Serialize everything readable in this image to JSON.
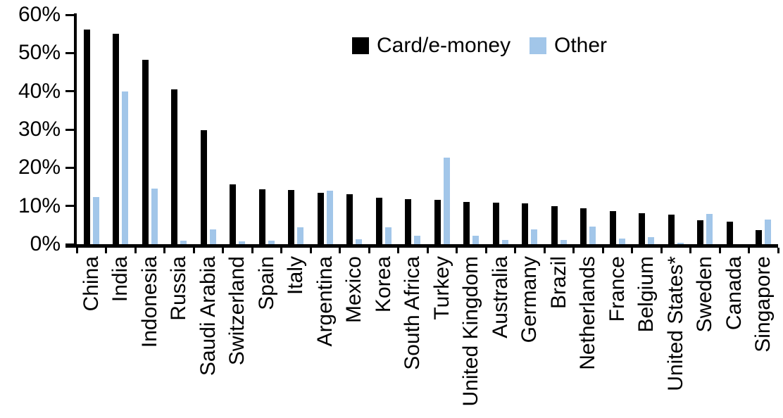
{
  "chart_data": {
    "type": "bar",
    "title": "",
    "xlabel": "",
    "ylabel": "",
    "categories": [
      "China",
      "India",
      "Indonesia",
      "Russia",
      "Saudi Arabia",
      "Switzerland",
      "Spain",
      "Italy",
      "Argentina",
      "Mexico",
      "Korea",
      "South Africa",
      "Turkey",
      "United Kingdom",
      "Australia",
      "Germany",
      "Brazil",
      "Netherlands",
      "France",
      "Belgium",
      "United States*",
      "Sweden",
      "Canada",
      "Singapore"
    ],
    "series": [
      {
        "name": "Card/e-money",
        "color": "#000000",
        "values": [
          56.2,
          55.0,
          48.3,
          40.4,
          29.8,
          15.7,
          14.3,
          14.2,
          13.4,
          13.0,
          12.2,
          11.8,
          11.6,
          11.1,
          10.8,
          10.6,
          10.0,
          9.3,
          8.6,
          8.1,
          7.7,
          6.3,
          5.8,
          3.6
        ],
        "unit": "%"
      },
      {
        "name": "Other",
        "color": "#A2C6E9",
        "values": [
          12.3,
          39.9,
          14.5,
          1.0,
          3.8,
          0.8,
          1.0,
          4.4,
          13.9,
          1.2,
          4.5,
          2.3,
          22.6,
          2.2,
          1.1,
          3.8,
          1.1,
          4.6,
          1.4,
          1.9,
          0.3,
          7.9,
          0.0,
          6.5
        ],
        "unit": "%"
      }
    ],
    "ylim": [
      0,
      60
    ],
    "y_ticks": [
      0,
      10,
      20,
      30,
      40,
      50,
      60
    ],
    "y_tick_labels": [
      "0%",
      "10%",
      "20%",
      "30%",
      "40%",
      "50%",
      "60%"
    ],
    "y_tick_format": "percent",
    "grid": false,
    "legend_position": "top-center",
    "x_label_rotation": -90
  }
}
